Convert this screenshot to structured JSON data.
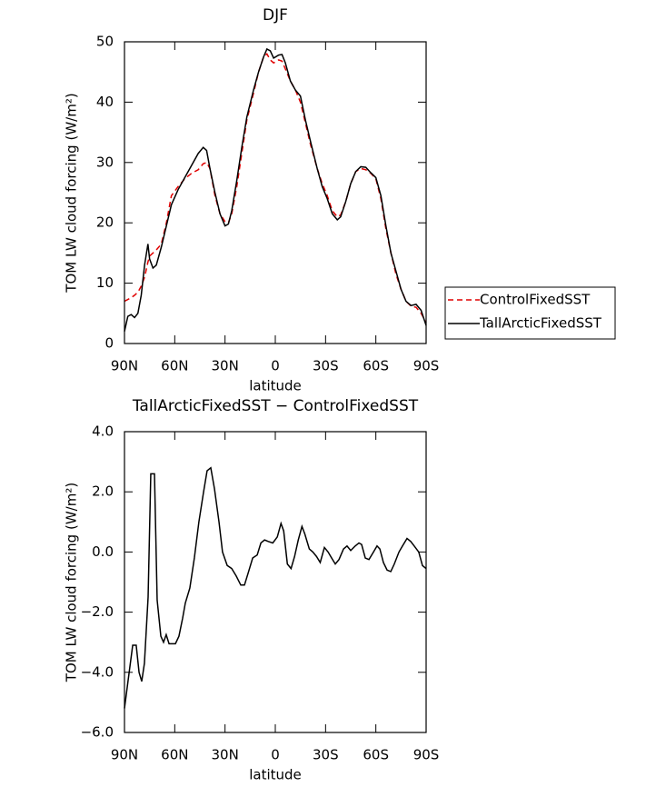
{
  "chart_data": [
    {
      "type": "line",
      "title": "DJF",
      "xlabel": "latitude",
      "ylabel": "TOM LW cloud forcing (W/m²)",
      "x": [
        90,
        88,
        86,
        84,
        82,
        80,
        78,
        76,
        75,
        73,
        71,
        68,
        65,
        62,
        58,
        54,
        50,
        46,
        43,
        41,
        39,
        36,
        33,
        30,
        28,
        26,
        23,
        20,
        17,
        13,
        10,
        7,
        5,
        3,
        1,
        -2,
        -4,
        -6,
        -9,
        -12,
        -15,
        -18,
        -21,
        -25,
        -28,
        -31,
        -34,
        -37,
        -39,
        -42,
        -45,
        -48,
        -51,
        -54,
        -57,
        -60,
        -63,
        -66,
        -69,
        -72,
        -75,
        -78,
        -81,
        -84,
        -87,
        -90
      ],
      "series": [
        {
          "name": "ControlFixedSST",
          "color": "#e00000",
          "dashed": true,
          "values": [
            7,
            7.3,
            7.6,
            8,
            8.5,
            9.5,
            11,
            13.5,
            14.5,
            15,
            15.5,
            16.5,
            20,
            24.5,
            26,
            27.3,
            28.2,
            28.8,
            29.8,
            30,
            29,
            24.5,
            21.5,
            20.2,
            20,
            21.5,
            26,
            31.5,
            37,
            41.5,
            45,
            47.5,
            48,
            47,
            46.5,
            47,
            46.8,
            45.5,
            43.5,
            42,
            40,
            36.5,
            33,
            29,
            26.5,
            24.5,
            22,
            21,
            21.3,
            23.5,
            26.5,
            28.5,
            29,
            28.8,
            28.2,
            27.3,
            24,
            19,
            15,
            11.5,
            9,
            7,
            6.2,
            6,
            5,
            3.5
          ]
        },
        {
          "name": "TallArcticFixedSST",
          "color": "#000000",
          "dashed": false,
          "values": [
            2,
            4.5,
            4.8,
            4.3,
            5,
            8,
            13,
            16.5,
            14,
            12.5,
            13,
            16,
            19.5,
            23,
            25.5,
            27.5,
            29.5,
            31.5,
            32.5,
            32,
            29,
            25,
            21.5,
            19.5,
            19.8,
            22,
            27,
            32.5,
            37.5,
            42,
            45,
            47.5,
            48.8,
            48.5,
            47.3,
            47.8,
            47.9,
            46.5,
            43.5,
            42,
            41,
            37,
            33.5,
            29,
            26,
            24,
            21.5,
            20.5,
            21,
            23.5,
            26.5,
            28.5,
            29.3,
            29.2,
            28.3,
            27.5,
            24.5,
            19.5,
            15,
            12,
            9,
            7,
            6.3,
            6.5,
            5.5,
            3
          ]
        }
      ],
      "xlim": [
        90,
        -90
      ],
      "xticks": [
        {
          "value": 90,
          "label": "90N"
        },
        {
          "value": 60,
          "label": "60N"
        },
        {
          "value": 30,
          "label": "30N"
        },
        0,
        {
          "value": -30,
          "label": "30S"
        },
        {
          "value": -60,
          "label": "60S"
        },
        {
          "value": -90,
          "label": "90S"
        }
      ],
      "ylim": [
        0,
        50
      ],
      "yticks": [
        0,
        10,
        20,
        30,
        40,
        50
      ],
      "grid": false,
      "legend": "right"
    },
    {
      "type": "line",
      "title": "TallArcticFixedSST − ControlFixedSST",
      "xlabel": "latitude",
      "ylabel": "TOM LW cloud forcing (W/m²)",
      "x": [
        90,
        85.1,
        83.0,
        81.3,
        79.7,
        78.1,
        75.9,
        74.3,
        72.1,
        70.5,
        68.3,
        66.7,
        65.1,
        63.4,
        59.6,
        57.5,
        55.3,
        53.7,
        51.0,
        48.3,
        45.6,
        42.8,
        40.7,
        38.5,
        36.3,
        33.6,
        31.5,
        28.7,
        26.0,
        23.3,
        20.6,
        18.4,
        16.2,
        13.5,
        10.8,
        8.6,
        6.4,
        4.2,
        1.5,
        -1.2,
        -3.4,
        -5.0,
        -7.2,
        -9.4,
        -11.5,
        -13.7,
        -15.9,
        -17.6,
        -20.3,
        -22.4,
        -24.6,
        -26.8,
        -29.3,
        -31.5,
        -33.6,
        -35.8,
        -38.0,
        -40.7,
        -42.8,
        -45.0,
        -47.7,
        -49.9,
        -51.5,
        -53.7,
        -55.9,
        -58.6,
        -60.7,
        -62.4,
        -64.5,
        -66.7,
        -68.9,
        -71.0,
        -73.8,
        -75.9,
        -78.6,
        -80.8,
        -82.9,
        -85.6,
        -87.8,
        -90
      ],
      "series": [
        {
          "color": "#000000",
          "dashed": false,
          "values": [
            -5.2,
            -3.1,
            -3.1,
            -4.0,
            -4.3,
            -3.7,
            -1.5,
            2.6,
            2.6,
            -1.6,
            -2.8,
            -3.0,
            -2.75,
            -3.05,
            -3.05,
            -2.8,
            -2.2,
            -1.7,
            -1.2,
            -0.2,
            1.0,
            2.0,
            2.7,
            2.8,
            2.1,
            1.0,
            0.0,
            -0.45,
            -0.55,
            -0.8,
            -1.1,
            -1.1,
            -0.7,
            -0.2,
            -0.1,
            0.3,
            0.4,
            0.35,
            0.3,
            0.5,
            0.95,
            0.7,
            -0.4,
            -0.55,
            -0.15,
            0.4,
            0.85,
            0.6,
            0.1,
            0.0,
            -0.15,
            -0.35,
            0.15,
            0.0,
            -0.2,
            -0.4,
            -0.25,
            0.1,
            0.2,
            0.05,
            0.2,
            0.3,
            0.25,
            -0.2,
            -0.25,
            0.0,
            0.2,
            0.1,
            -0.35,
            -0.6,
            -0.65,
            -0.4,
            0.0,
            0.2,
            0.45,
            0.35,
            0.2,
            0.0,
            -0.45,
            -0.55
          ]
        }
      ],
      "xlim": [
        90,
        -90
      ],
      "xticks": [
        {
          "value": 90,
          "label": "90N"
        },
        {
          "value": 60,
          "label": "60N"
        },
        {
          "value": 30,
          "label": "30N"
        },
        0,
        {
          "value": -30,
          "label": "30S"
        },
        {
          "value": -60,
          "label": "60S"
        },
        {
          "value": -90,
          "label": "90S"
        }
      ],
      "ylim": [
        -6,
        4
      ],
      "yticks": [
        {
          "value": -6,
          "label": "−6.0"
        },
        {
          "value": -4,
          "label": "−4.0"
        },
        {
          "value": -2,
          "label": "−2.0"
        },
        {
          "value": 0,
          "label": "0.0"
        },
        {
          "value": 2,
          "label": "2.0"
        },
        {
          "value": 4,
          "label": "4.0"
        }
      ],
      "grid": false
    }
  ]
}
